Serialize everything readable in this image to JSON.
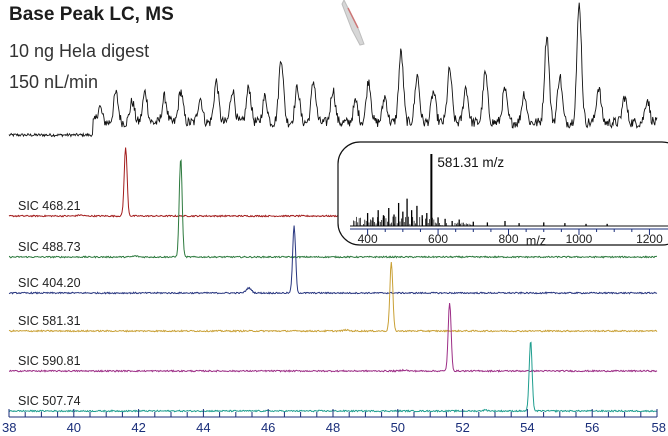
{
  "chart_data": [
    {
      "type": "line",
      "title": "Base Peak LC, MS",
      "subtitle_lines": [
        "10 ng Hela digest",
        "150 nL/min"
      ],
      "xlabel": "",
      "xlim": [
        38,
        58
      ],
      "x_ticks": [
        "38",
        "40",
        "42",
        "44",
        "46",
        "48",
        "50",
        "52",
        "54",
        "56",
        "58"
      ],
      "grid": false,
      "colors": {
        "base_peak": "#111111",
        "axis": "#1a2e7a"
      },
      "base_peak_trace": {
        "baseline_start_x": 38.0,
        "signal_start_x": 40.6,
        "peaks": [
          {
            "x": 40.8,
            "h": 0.13
          },
          {
            "x": 41.3,
            "h": 0.25
          },
          {
            "x": 41.8,
            "h": 0.18
          },
          {
            "x": 42.2,
            "h": 0.26
          },
          {
            "x": 42.8,
            "h": 0.22
          },
          {
            "x": 43.3,
            "h": 0.27
          },
          {
            "x": 43.9,
            "h": 0.21
          },
          {
            "x": 44.4,
            "h": 0.35
          },
          {
            "x": 44.9,
            "h": 0.28
          },
          {
            "x": 45.4,
            "h": 0.3
          },
          {
            "x": 45.9,
            "h": 0.22
          },
          {
            "x": 46.4,
            "h": 0.55
          },
          {
            "x": 46.9,
            "h": 0.3
          },
          {
            "x": 47.4,
            "h": 0.35
          },
          {
            "x": 48.0,
            "h": 0.28
          },
          {
            "x": 48.7,
            "h": 0.18
          },
          {
            "x": 49.1,
            "h": 0.36
          },
          {
            "x": 49.6,
            "h": 0.22
          },
          {
            "x": 50.1,
            "h": 0.6
          },
          {
            "x": 50.6,
            "h": 0.4
          },
          {
            "x": 51.1,
            "h": 0.26
          },
          {
            "x": 51.6,
            "h": 0.45
          },
          {
            "x": 52.1,
            "h": 0.3
          },
          {
            "x": 52.7,
            "h": 0.42
          },
          {
            "x": 53.3,
            "h": 0.28
          },
          {
            "x": 53.9,
            "h": 0.25
          },
          {
            "x": 54.6,
            "h": 0.74
          },
          {
            "x": 55.0,
            "h": 0.4
          },
          {
            "x": 55.6,
            "h": 1.0
          },
          {
            "x": 56.2,
            "h": 0.3
          },
          {
            "x": 57.0,
            "h": 0.22
          },
          {
            "x": 57.7,
            "h": 0.2
          }
        ]
      },
      "series": [
        {
          "name": "SIC 468.21",
          "color": "#a31c1c",
          "peak_x": 41.6,
          "rel_height": 1.0
        },
        {
          "name": "SIC 488.73",
          "color": "#2d7a3e",
          "peak_x": 43.3,
          "rel_height": 0.85
        },
        {
          "name": "SIC 404.20",
          "color": "#27357f",
          "peak_x": 46.8,
          "rel_height": 0.88
        },
        {
          "name": "SIC 581.31",
          "color": "#c9a035",
          "peak_x": 49.8,
          "rel_height": 0.92
        },
        {
          "name": "SIC 590.81",
          "color": "#9c2d86",
          "peak_x": 51.6,
          "rel_height": 0.92
        },
        {
          "name": "SIC 507.74",
          "color": "#1f9e8f",
          "peak_x": 54.1,
          "rel_height": 0.93
        }
      ]
    },
    {
      "type": "bar",
      "title": "",
      "annotation": "581.31 m/z",
      "xlabel": "m/z",
      "xlim": [
        350,
        1230
      ],
      "x_ticks": [
        "400",
        "600",
        "800",
        "1000",
        "1200"
      ],
      "color": "#000000",
      "bars": [
        {
          "x": 400,
          "h": 0.18
        },
        {
          "x": 415,
          "h": 0.12
        },
        {
          "x": 430,
          "h": 0.22
        },
        {
          "x": 445,
          "h": 0.15
        },
        {
          "x": 460,
          "h": 0.25
        },
        {
          "x": 475,
          "h": 0.16
        },
        {
          "x": 488,
          "h": 0.32
        },
        {
          "x": 500,
          "h": 0.2
        },
        {
          "x": 512,
          "h": 0.38
        },
        {
          "x": 525,
          "h": 0.22
        },
        {
          "x": 540,
          "h": 0.28
        },
        {
          "x": 555,
          "h": 0.15
        },
        {
          "x": 568,
          "h": 0.18
        },
        {
          "x": 581,
          "h": 1.0
        },
        {
          "x": 600,
          "h": 0.12
        },
        {
          "x": 620,
          "h": 0.1
        },
        {
          "x": 640,
          "h": 0.07
        },
        {
          "x": 660,
          "h": 0.09
        },
        {
          "x": 700,
          "h": 0.06
        },
        {
          "x": 740,
          "h": 0.05
        },
        {
          "x": 790,
          "h": 0.07
        },
        {
          "x": 830,
          "h": 0.04
        },
        {
          "x": 900,
          "h": 0.05
        },
        {
          "x": 960,
          "h": 0.04
        },
        {
          "x": 1020,
          "h": 0.03
        },
        {
          "x": 1080,
          "h": 0.03
        }
      ]
    }
  ]
}
